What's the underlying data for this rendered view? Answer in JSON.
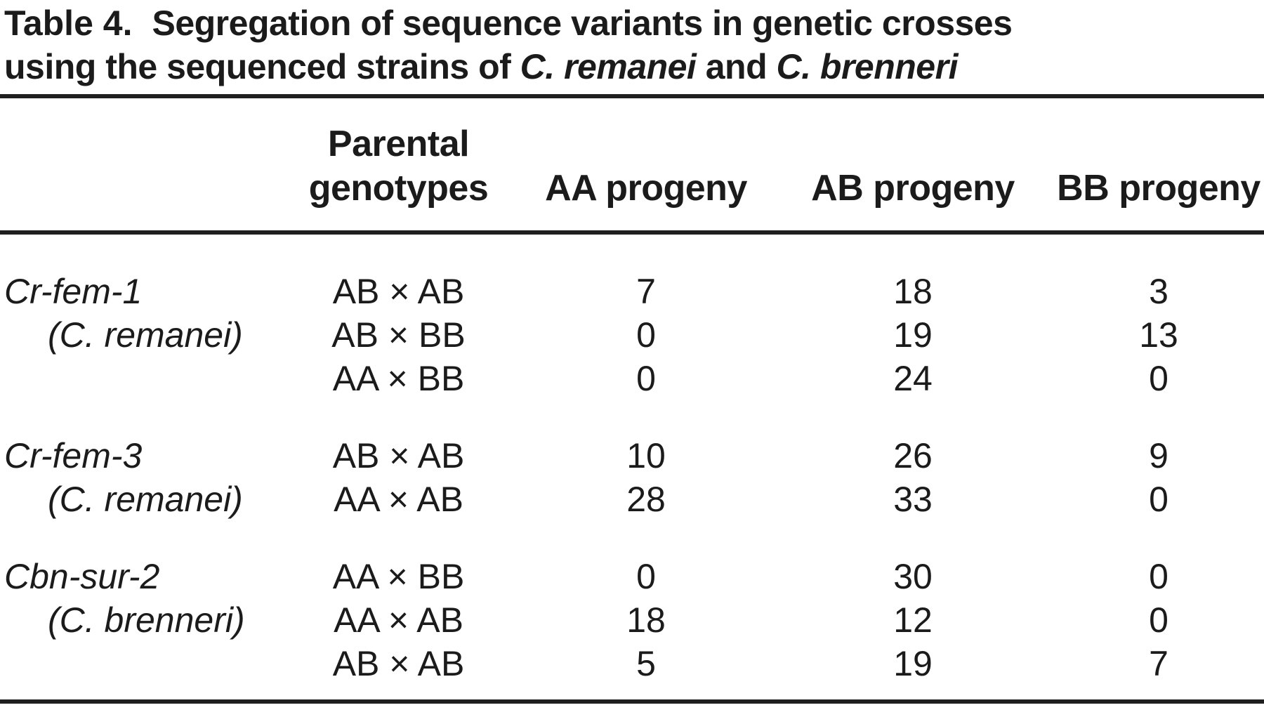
{
  "title": {
    "label": "Table 4.",
    "line1_rest": "Segregation of sequence variants in genetic crosses",
    "line2_start": "using the sequenced strains of ",
    "species1": "C. remanei",
    "line2_and": " and ",
    "species2": "C. brenneri"
  },
  "table": {
    "headers": {
      "gene": "",
      "parental": "Parental genotypes",
      "aa": "AA progeny",
      "ab": "AB progeny",
      "bb": "BB progeny"
    },
    "rows": [
      {
        "gene": "Cr-fem-1",
        "indent": false,
        "cross": "AB × AB",
        "aa": "7",
        "ab": "18",
        "bb": "3"
      },
      {
        "gene": "(C. remanei)",
        "indent": true,
        "cross": "AB × BB",
        "aa": "0",
        "ab": "19",
        "bb": "13"
      },
      {
        "gene": "",
        "indent": false,
        "cross": "AA × BB",
        "aa": "0",
        "ab": "24",
        "bb": "0"
      },
      {
        "gene": "Cr-fem-3",
        "indent": false,
        "cross": "AB × AB",
        "aa": "10",
        "ab": "26",
        "bb": "9"
      },
      {
        "gene": "(C. remanei)",
        "indent": true,
        "cross": "AA × AB",
        "aa": "28",
        "ab": "33",
        "bb": "0"
      },
      {
        "gene": "Cbn-sur-2",
        "indent": false,
        "cross": "AA × BB",
        "aa": "0",
        "ab": "30",
        "bb": "0"
      },
      {
        "gene": "(C. brenneri)",
        "indent": true,
        "cross": "AA × AB",
        "aa": "18",
        "ab": "12",
        "bb": "0"
      },
      {
        "gene": "",
        "indent": false,
        "cross": "AB × AB",
        "aa": "5",
        "ab": "19",
        "bb": "7"
      }
    ]
  },
  "colors": {
    "text": "#1b1b1b",
    "rule": "#1f1f1f",
    "background": "#ffffff"
  }
}
